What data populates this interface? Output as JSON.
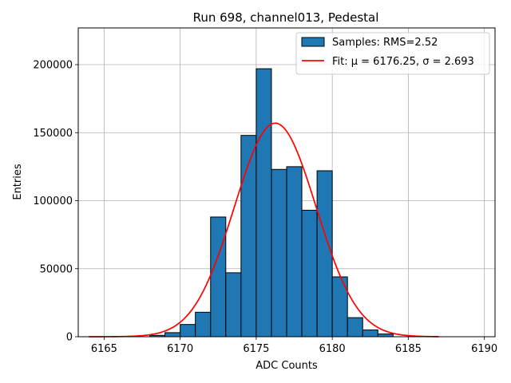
{
  "chart_data": {
    "type": "bar",
    "title": "Run 698, channel013, Pedestal",
    "xlabel": "ADC Counts",
    "ylabel": "Entries",
    "xlim": [
      6163.3,
      6190.7
    ],
    "ylim": [
      0,
      227000
    ],
    "grid": true,
    "legend_position": "top-right",
    "x_ticks": [
      6165,
      6170,
      6175,
      6180,
      6185,
      6190
    ],
    "y_ticks": [
      0,
      50000,
      100000,
      150000,
      200000
    ],
    "bin_width": 1,
    "histogram": {
      "name": "Samples: RMS=2.52",
      "color": "#1f77b4",
      "edge_color": "#000000",
      "bins": [
        {
          "left": 6168,
          "value": 1000
        },
        {
          "left": 6169,
          "value": 3000
        },
        {
          "left": 6170,
          "value": 9000
        },
        {
          "left": 6171,
          "value": 18000
        },
        {
          "left": 6172,
          "value": 88000
        },
        {
          "left": 6173,
          "value": 47000
        },
        {
          "left": 6174,
          "value": 148000
        },
        {
          "left": 6175,
          "value": 197000
        },
        {
          "left": 6176,
          "value": 123000
        },
        {
          "left": 6177,
          "value": 125000
        },
        {
          "left": 6178,
          "value": 93000
        },
        {
          "left": 6179,
          "value": 122000
        },
        {
          "left": 6180,
          "value": 44000
        },
        {
          "left": 6181,
          "value": 14000
        },
        {
          "left": 6182,
          "value": 5000
        },
        {
          "left": 6183,
          "value": 2000
        }
      ]
    },
    "fit": {
      "name": "Fit: μ = 6176.25, σ = 2.693",
      "color": "#ff0000",
      "mu": 6176.25,
      "sigma": 2.693,
      "amplitude": 157000,
      "x_range": [
        6164,
        6187
      ]
    }
  }
}
